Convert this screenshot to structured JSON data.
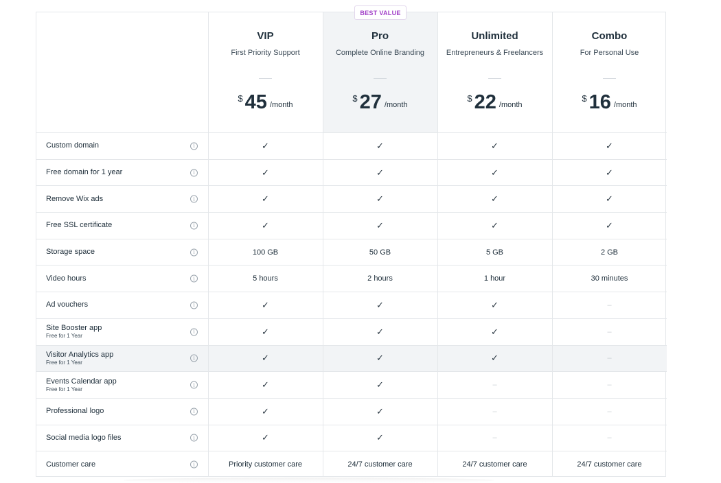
{
  "badge": "BEST VALUE",
  "plans": [
    {
      "name": "VIP",
      "subtitle": "First Priority Support",
      "currency": "$",
      "price": "45",
      "period": "/month"
    },
    {
      "name": "Pro",
      "subtitle": "Complete Online Branding",
      "currency": "$",
      "price": "27",
      "period": "/month"
    },
    {
      "name": "Unlimited",
      "subtitle": "Entrepreneurs & Freelancers",
      "currency": "$",
      "price": "22",
      "period": "/month"
    },
    {
      "name": "Combo",
      "subtitle": "For Personal Use",
      "currency": "$",
      "price": "16",
      "period": "/month"
    }
  ],
  "info_icon": "info-icon",
  "check_glyph": "✓",
  "dash_glyph": "–",
  "features": [
    {
      "label": "Custom domain",
      "note": "",
      "values": [
        "✓",
        "✓",
        "✓",
        "✓"
      ]
    },
    {
      "label": "Free domain for 1 year",
      "note": "",
      "values": [
        "✓",
        "✓",
        "✓",
        "✓"
      ]
    },
    {
      "label": "Remove Wix ads",
      "note": "",
      "values": [
        "✓",
        "✓",
        "✓",
        "✓"
      ]
    },
    {
      "label": "Free SSL certificate",
      "note": "",
      "values": [
        "✓",
        "✓",
        "✓",
        "✓"
      ]
    },
    {
      "label": "Storage space",
      "note": "",
      "values": [
        "100 GB",
        "50 GB",
        "5 GB",
        "2 GB"
      ]
    },
    {
      "label": "Video hours",
      "note": "",
      "values": [
        "5 hours",
        "2 hours",
        "1 hour",
        "30 minutes"
      ]
    },
    {
      "label": "Ad vouchers",
      "note": "",
      "values": [
        "✓",
        "✓",
        "✓",
        "–"
      ]
    },
    {
      "label": "Site Booster app",
      "note": "Free for 1 Year",
      "values": [
        "✓",
        "✓",
        "✓",
        "–"
      ]
    },
    {
      "label": "Visitor Analytics app",
      "note": "Free for 1 Year",
      "values": [
        "✓",
        "✓",
        "✓",
        "–"
      ],
      "highlighted": true
    },
    {
      "label": "Events Calendar app",
      "note": "Free for 1 Year",
      "values": [
        "✓",
        "✓",
        "–",
        "–"
      ]
    },
    {
      "label": "Professional logo",
      "note": "",
      "values": [
        "✓",
        "✓",
        "–",
        "–"
      ]
    },
    {
      "label": "Social media logo files",
      "note": "",
      "values": [
        "✓",
        "✓",
        "–",
        "–"
      ]
    },
    {
      "label": "Customer care",
      "note": "",
      "values": [
        "Priority customer care",
        "24/7 customer care",
        "24/7 customer care",
        "24/7 customer care"
      ]
    }
  ]
}
